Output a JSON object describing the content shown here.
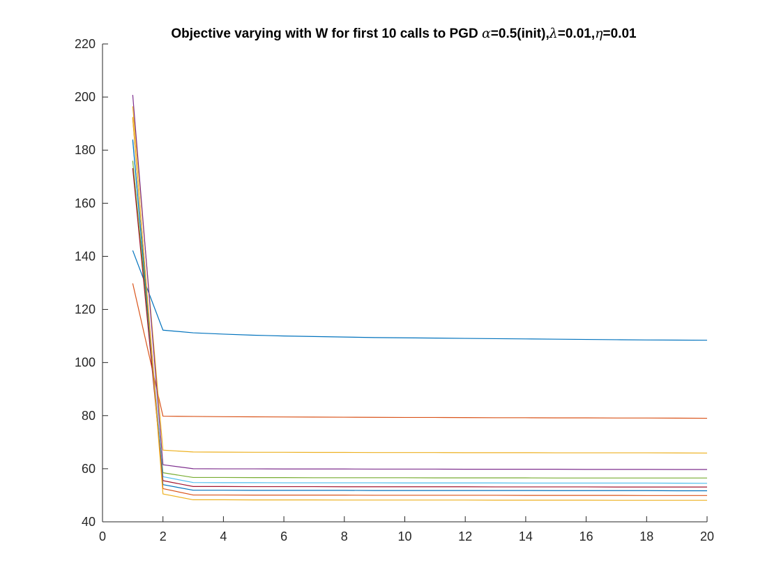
{
  "chart_data": {
    "type": "line",
    "title": {
      "text_before": "Objective varying with W for first 10 calls to PGD ",
      "alpha_symbol": "α",
      "alpha_text": "=0.5(init),",
      "lambda_symbol": "λ",
      "lambda_text": "=0.01,",
      "eta_symbol": "η",
      "eta_text": "=0.01"
    },
    "xlabel": "",
    "ylabel": "",
    "xlim": [
      0,
      20
    ],
    "ylim": [
      40,
      220
    ],
    "xticks": [
      "0",
      "2",
      "4",
      "6",
      "8",
      "10",
      "12",
      "14",
      "16",
      "18",
      "20"
    ],
    "yticks": [
      "40",
      "60",
      "80",
      "100",
      "120",
      "140",
      "160",
      "180",
      "200",
      "220"
    ],
    "grid": false,
    "legend": "none",
    "x": [
      1,
      2,
      3,
      4,
      5,
      6,
      7,
      8,
      9,
      10,
      11,
      12,
      13,
      14,
      15,
      16,
      17,
      18,
      19,
      20
    ],
    "series": [
      {
        "color": "#0072BD",
        "values": [
          142.2,
          112.2,
          111.2,
          110.7,
          110.3,
          110.0,
          109.8,
          109.6,
          109.4,
          109.3,
          109.2,
          109.1,
          109.0,
          108.9,
          108.8,
          108.7,
          108.6,
          108.5,
          108.45,
          108.4
        ]
      },
      {
        "color": "#D95319",
        "values": [
          129.8,
          79.8,
          79.7,
          79.6,
          79.55,
          79.5,
          79.45,
          79.4,
          79.35,
          79.3,
          79.3,
          79.25,
          79.2,
          79.2,
          79.15,
          79.15,
          79.1,
          79.1,
          79.05,
          79.0
        ]
      },
      {
        "color": "#EDB120",
        "values": [
          196.5,
          67.0,
          66.3,
          66.25,
          66.2,
          66.2,
          66.15,
          66.15,
          66.1,
          66.1,
          66.1,
          66.05,
          66.05,
          66.05,
          66.0,
          66.0,
          66.0,
          66.0,
          65.95,
          65.9
        ]
      },
      {
        "color": "#7E2F8E",
        "values": [
          200.8,
          61.5,
          60.0,
          59.95,
          59.95,
          59.9,
          59.9,
          59.9,
          59.85,
          59.85,
          59.85,
          59.8,
          59.8,
          59.8,
          59.8,
          59.75,
          59.75,
          59.75,
          59.7,
          59.7
        ]
      },
      {
        "color": "#77AC30",
        "values": [
          176.0,
          58.5,
          56.7,
          56.7,
          56.65,
          56.65,
          56.6,
          56.6,
          56.6,
          56.6,
          56.55,
          56.55,
          56.55,
          56.55,
          56.5,
          56.5,
          56.5,
          56.5,
          56.5,
          56.5
        ]
      },
      {
        "color": "#4DBEEE",
        "values": [
          183.5,
          57.0,
          54.8,
          54.75,
          54.75,
          54.7,
          54.7,
          54.7,
          54.7,
          54.65,
          54.65,
          54.65,
          54.65,
          54.6,
          54.6,
          54.6,
          54.6,
          54.6,
          54.55,
          54.5
        ]
      },
      {
        "color": "#A2142F",
        "values": [
          173.2,
          55.5,
          53.3,
          53.3,
          53.25,
          53.25,
          53.25,
          53.2,
          53.2,
          53.2,
          53.2,
          53.2,
          53.15,
          53.15,
          53.15,
          53.15,
          53.1,
          53.1,
          53.1,
          53.1
        ]
      },
      {
        "color": "#0072BD",
        "values": [
          184.0,
          54.0,
          51.9,
          51.9,
          51.85,
          51.85,
          51.85,
          51.85,
          51.8,
          51.8,
          51.8,
          51.8,
          51.8,
          51.8,
          51.75,
          51.75,
          51.75,
          51.75,
          51.7,
          51.7
        ]
      },
      {
        "color": "#D95319",
        "values": [
          192.0,
          52.5,
          50.1,
          50.1,
          50.05,
          50.05,
          50.05,
          50.05,
          50.0,
          50.0,
          50.0,
          50.0,
          50.0,
          49.95,
          49.95,
          49.95,
          49.95,
          49.9,
          49.9,
          49.9
        ]
      },
      {
        "color": "#EDB120",
        "values": [
          192.5,
          50.5,
          48.3,
          48.3,
          48.25,
          48.25,
          48.25,
          48.2,
          48.2,
          48.2,
          48.2,
          48.2,
          48.15,
          48.15,
          48.15,
          48.15,
          48.1,
          48.1,
          48.1,
          48.1
        ]
      }
    ]
  }
}
